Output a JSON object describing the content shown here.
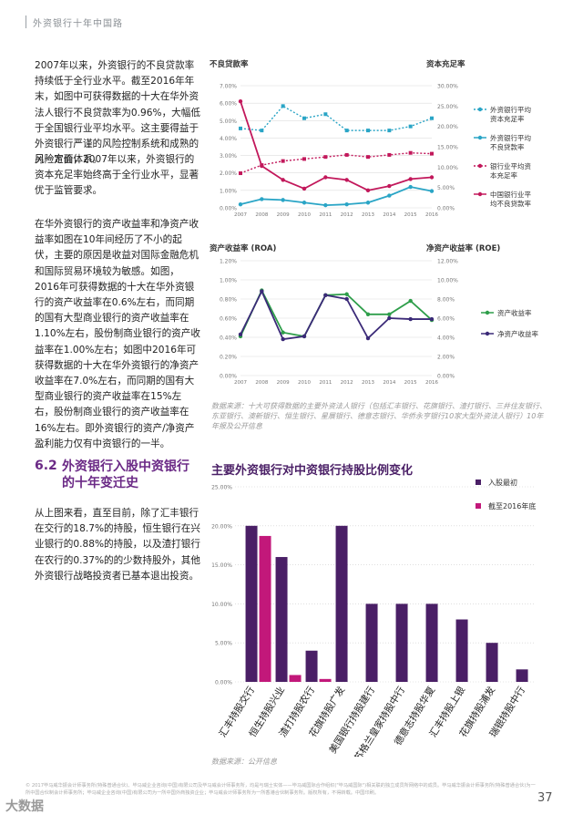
{
  "header": {
    "title": "外资银行十年中国路"
  },
  "left_column": {
    "para1": "2007年以来，外资银行的不良贷款率持续低于全行业水平。截至2016年年末，如图中可获得数据的十大在华外资法人银行不良贷款率为0.96%，大幅低于全国银行业平均水平。这主要得益于外资银行严谨的风险控制系统和成熟的风险定价体系。",
    "para2": "另一方面，2007年以来，外资银行的资本充足率始终高于全行业水平，显著优于监管要求。",
    "para3": "在华外资银行的资产收益率和净资产收益率如图在10年间经历了不小的起伏，主要的原因是收益对国际金融危机和国际贸易环境较为敏感。如图，2016年可获得数据的十大在华外资银行的资产收益率在0.6%左右，而同期的国有大型商业银行的资产收益率在1.10%左右，股份制商业银行的资产收益率在1.00%左右；如图中2016年可获得数据的十大在华外资银行的净资产收益率在7.0%左右，而同期的国有大型商业银行的资产收益率在15%左右，股份制商业银行的资产收益率在16%左右。即外资银行的资产/净资产盈利能力仅有中资银行的一半。",
    "section_number": "6.2",
    "section_title": "外资银行入股中资银行的十年变迁史",
    "para4": "从上图来看，直至目前，除了汇丰银行在交行的18.7%的持股，恒生银行在兴业银行的0.88%的持股，以及渣打银行在农行的0.37%的的少数持股外，其他外资银行战略投资者已基本退出投资。"
  },
  "chart1": {
    "left_axis_title": "不良贷款率",
    "right_axis_title": "资本充足率",
    "note": ""
  },
  "chart2": {
    "left_axis_title": "资产收益率 (ROA)",
    "right_axis_title": "净资产收益率 (ROE)",
    "note": "数据来源：十大可获得数据的主要外资法人银行（包括汇丰银行、花旗银行、渣打银行、三井住友银行、东亚银行、澳新银行、恒生银行、星展银行、德意志银行、华侨永亨银行10家大型外资法人银行）10年年报及公开信息"
  },
  "chart3": {
    "title": "主要外资银行对中资银行持股比例变化",
    "note": "数据来源：公开信息"
  },
  "footer": {
    "text": "© 2017毕马威华振会计师事务所(特殊普通合伙)、毕马威企业咨询(中国)有限公司及毕马威会计师事务所，均是与瑞士实体——毕马威国际合作组织(\"毕马威国际\")相关联的独立成员所网络中的成员。毕马威华振会计师事务所(特殊普通合伙)为一所中国合伙制会计师事务所；毕马威企业咨询(中国)有限公司为一所中国外商独资企业；毕马威会计师事务所为一所香港合伙制事务所。版权所有，不得转载。中国印刷。",
    "page_number": "37",
    "watermark": "大数据"
  },
  "colors": {
    "teal": "#2aa5c6",
    "crimson": "#c2185b",
    "green": "#2e9e4a",
    "navy": "#3b2a78",
    "purple": "#4a1f66",
    "magenta": "#c2187a"
  },
  "chart_data": [
    {
      "type": "line",
      "x": [
        "2007",
        "2008",
        "2009",
        "2010",
        "2011",
        "2012",
        "2013",
        "2014",
        "2015",
        "2016"
      ],
      "ylim_left": [
        0,
        7
      ],
      "yticks_left": [
        "0.00%",
        "1.00%",
        "2.00%",
        "3.00%",
        "4.00%",
        "5.00%",
        "6.00%",
        "7.00%"
      ],
      "ylim_right": [
        0,
        30
      ],
      "yticks_right": [
        "0.00%",
        "5.00%",
        "10.00%",
        "15.00%",
        "20.00%",
        "25.00%",
        "30.00%"
      ],
      "series": [
        {
          "name": "外资银行平均资本充足率",
          "axis": "right",
          "style": "dotted",
          "color": "#2aa5c6",
          "values": [
            19.5,
            19.0,
            25.0,
            22.0,
            23.0,
            19.0,
            19.0,
            19.0,
            20.0,
            22.0
          ]
        },
        {
          "name": "外资银行平均不良贷款率",
          "axis": "left",
          "style": "solid",
          "color": "#2aa5c6",
          "values": [
            0.2,
            0.5,
            0.45,
            0.3,
            0.15,
            0.2,
            0.3,
            0.7,
            1.2,
            0.96
          ]
        },
        {
          "name": "银行业平均资本充足率",
          "axis": "right",
          "style": "dotted",
          "color": "#c2185b",
          "values": [
            8.5,
            10.5,
            11.5,
            12.0,
            12.5,
            13.0,
            12.5,
            13.0,
            13.5,
            13.3
          ]
        },
        {
          "name": "中国银行业平均不良贷款率",
          "axis": "left",
          "style": "solid",
          "color": "#c2185b",
          "values": [
            6.1,
            2.4,
            1.6,
            1.1,
            1.75,
            1.6,
            1.0,
            1.25,
            1.65,
            1.75
          ]
        }
      ]
    },
    {
      "type": "line",
      "x": [
        "2007",
        "2008",
        "2009",
        "2010",
        "2011",
        "2012",
        "2013",
        "2014",
        "2015",
        "2016"
      ],
      "ylim": [
        0,
        12
      ],
      "yticks_left": [
        "0.00%",
        "0.20%",
        "0.40%",
        "0.60%",
        "0.80%",
        "1.00%",
        "1.20%"
      ],
      "yticks_right": [
        "0.00%",
        "2.00%",
        "4.00%",
        "6.00%",
        "8.00%",
        "10.00%",
        "12.00%"
      ],
      "series": [
        {
          "name": "资产收益率",
          "color": "#2e9e4a",
          "values": [
            4.1,
            8.9,
            4.5,
            4.1,
            8.4,
            8.5,
            6.4,
            6.4,
            7.8,
            5.8
          ]
        },
        {
          "name": "净资产收益率",
          "color": "#3b2a78",
          "values": [
            4.3,
            8.8,
            3.8,
            4.1,
            8.4,
            8.0,
            3.9,
            6.0,
            5.9,
            5.9
          ]
        }
      ]
    },
    {
      "type": "bar",
      "title": "主要外资银行对中资银行持股比例变化",
      "categories": [
        "汇丰持股交行",
        "恒生持股兴业",
        "渣打持股农行",
        "花旗持股广发",
        "美国银行持股建行",
        "苏格兰皇家持股中行",
        "德意志持股华夏",
        "汇丰持股上银",
        "花旗持股浦发",
        "瑞银持股中行"
      ],
      "ylim": [
        0,
        25
      ],
      "yticks": [
        "0.00%",
        "5.00%",
        "10.00%",
        "15.00%",
        "20.00%",
        "25.00%"
      ],
      "series": [
        {
          "name": "入股最初",
          "color": "#4a1f66",
          "values": [
            20.0,
            16.0,
            4.0,
            20.0,
            10.0,
            10.0,
            10.0,
            8.0,
            5.0,
            1.6
          ]
        },
        {
          "name": "截至2016年底",
          "color": "#c2187a",
          "values": [
            18.7,
            0.88,
            0.37,
            null,
            null,
            null,
            null,
            null,
            null,
            null
          ]
        }
      ]
    }
  ]
}
